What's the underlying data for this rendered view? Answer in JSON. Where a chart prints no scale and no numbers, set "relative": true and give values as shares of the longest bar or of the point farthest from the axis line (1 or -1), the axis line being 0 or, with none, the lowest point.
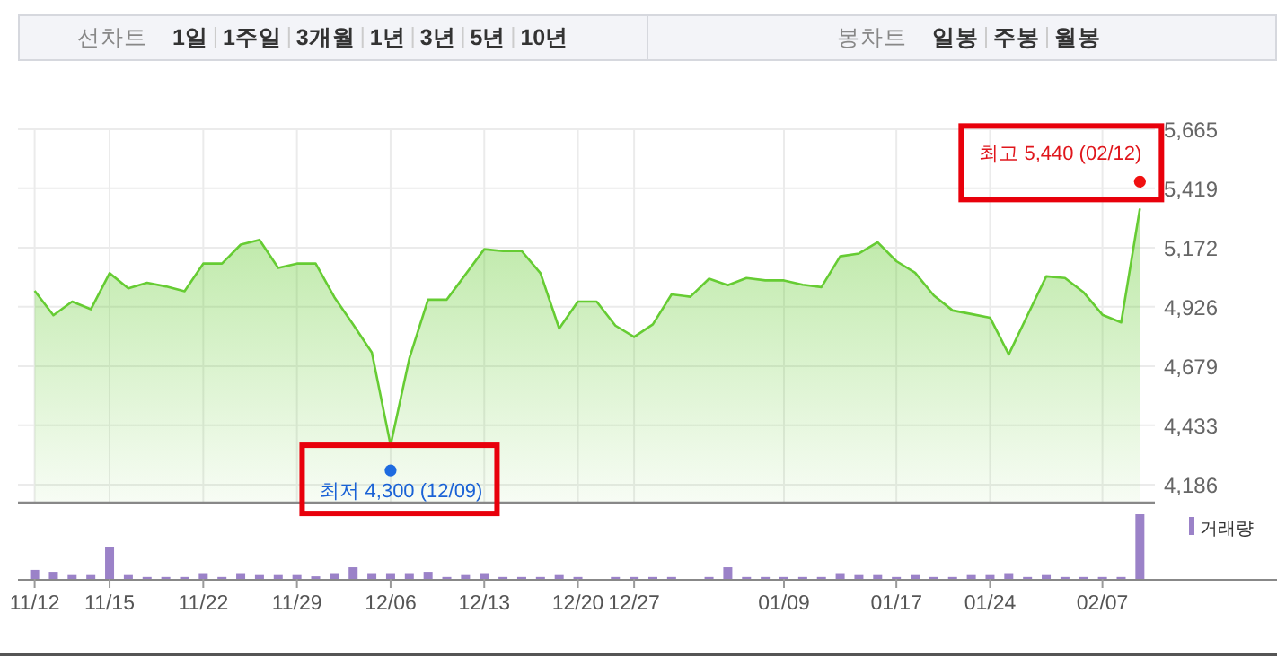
{
  "chart_data": [
    {
      "type": "other",
      "annotations": [
        "선차트",
        "1일",
        "1주일",
        "3개월",
        "1년",
        "3년",
        "5년",
        "10년",
        "봉차트",
        "일봉",
        "주봉",
        "월봉"
      ]
    },
    {
      "type": "area",
      "color": "#66cc33",
      "categories": [
        null,
        null,
        null,
        null,
        null,
        null,
        null,
        null,
        null,
        null,
        null,
        null,
        null,
        null,
        null,
        null,
        null,
        null,
        null,
        null,
        null,
        null,
        null,
        null,
        null,
        null,
        null,
        null,
        null,
        null,
        null,
        null,
        null,
        null,
        null,
        null,
        null,
        null,
        null,
        null,
        null,
        null,
        null,
        null,
        null,
        null,
        null,
        null,
        null,
        null,
        null,
        null,
        null,
        null,
        null,
        null,
        null,
        null,
        null,
        null
      ],
      "values": [
        4993,
        4891,
        4948,
        4916,
        5066,
        5003,
        5026,
        5011,
        4991,
        5106,
        5106,
        5185,
        5205,
        5088,
        5106,
        5106,
        4966,
        4853,
        4736,
        4350,
        4711,
        4956,
        4956,
        5061,
        5166,
        5158,
        5158,
        5066,
        4836,
        4948,
        4948,
        4848,
        4801,
        4853,
        4978,
        4968,
        5043,
        5016,
        5046,
        5036,
        5036,
        5018,
        5008,
        5136,
        5148,
        5195,
        5116,
        5068,
        4973,
        4911,
        4896,
        4881,
        4728,
        4891,
        5053,
        5046,
        4986,
        4893,
        4861,
        5335
      ],
      "ylim": [
        4110,
        5665
      ],
      "yticks": [
        {
          "value": 4186,
          "label": "4,186"
        },
        {
          "value": 4433,
          "label": "4,433"
        },
        {
          "value": 4679,
          "label": "4,679"
        },
        {
          "value": 4926,
          "label": "4,926"
        },
        {
          "value": 5172,
          "label": "5,172"
        },
        {
          "value": 5419,
          "label": "5,419"
        },
        {
          "value": 5665,
          "label": "5,665"
        }
      ],
      "grid": true,
      "tick_labels": "y",
      "annotations": [
        "최고 5,440 (02/12)",
        "최저 4,300 (12/09)"
      ]
    },
    {
      "type": "bar",
      "relative": true,
      "tick_labels": "x",
      "legend": "top right",
      "categories": [
        "11/12",
        null,
        null,
        null,
        "11/15",
        null,
        null,
        null,
        null,
        "11/22",
        null,
        null,
        null,
        null,
        "11/29",
        null,
        null,
        null,
        null,
        "12/06",
        null,
        null,
        null,
        null,
        "12/13",
        null,
        null,
        null,
        null,
        "12/20",
        null,
        null,
        "12/27",
        null,
        null,
        null,
        null,
        null,
        null,
        null,
        "01/09",
        null,
        null,
        null,
        null,
        null,
        "01/17",
        null,
        null,
        null,
        null,
        "01/24",
        null,
        null,
        null,
        null,
        null,
        "02/07",
        null,
        null
      ],
      "series": [
        {
          "name": "거래량",
          "color": "#9b82c8",
          "values": [
            0.14,
            0.11,
            0.06,
            0.06,
            0.5,
            0.06,
            0.03,
            0.03,
            0.03,
            0.09,
            0.03,
            0.09,
            0.06,
            0.06,
            0.06,
            0.04,
            0.09,
            0.18,
            0.09,
            0.09,
            0.09,
            0.11,
            0.03,
            0.06,
            0.09,
            0.03,
            0.03,
            0.03,
            0.06,
            0.03,
            0,
            0.03,
            0.03,
            0.03,
            0.03,
            0,
            0.03,
            0.18,
            0.03,
            0.03,
            0.03,
            0.03,
            0.03,
            0.09,
            0.06,
            0.06,
            0.03,
            0.06,
            0.03,
            0.03,
            0.06,
            0.06,
            0.09,
            0.03,
            0.06,
            0.03,
            0.03,
            0.03,
            0.03,
            1
          ]
        }
      ]
    }
  ]
}
